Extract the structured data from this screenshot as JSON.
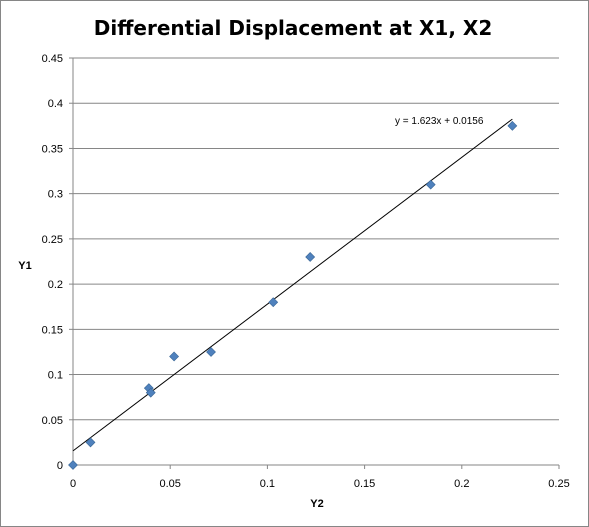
{
  "chart_data": {
    "type": "scatter",
    "title": "Differential Displacement at X1, X2",
    "xlabel": "Y2",
    "ylabel": "Y1",
    "xlim": [
      0,
      0.25
    ],
    "ylim": [
      0,
      0.45
    ],
    "x_ticks": [
      0,
      0.05,
      0.1,
      0.15,
      0.2,
      0.25
    ],
    "y_ticks": [
      0,
      0.05,
      0.1,
      0.15,
      0.2,
      0.25,
      0.3,
      0.35,
      0.4,
      0.45
    ],
    "x_tick_labels": [
      "0",
      "0.05",
      "0.1",
      "0.15",
      "0.2",
      "0.25"
    ],
    "y_tick_labels": [
      "0",
      "0.05",
      "0.1",
      "0.15",
      "0.2",
      "0.25",
      "0.3",
      "0.35",
      "0.4",
      "0.45"
    ],
    "grid": "horizontal",
    "legend": "none",
    "series": [
      {
        "marker": "diamond",
        "color": "#4F81BD",
        "points": [
          {
            "x": 0.0,
            "y": 0.0
          },
          {
            "x": 0.009,
            "y": 0.025
          },
          {
            "x": 0.039,
            "y": 0.085
          },
          {
            "x": 0.04,
            "y": 0.08
          },
          {
            "x": 0.052,
            "y": 0.12
          },
          {
            "x": 0.071,
            "y": 0.125
          },
          {
            "x": 0.103,
            "y": 0.18
          },
          {
            "x": 0.122,
            "y": 0.23
          },
          {
            "x": 0.184,
            "y": 0.31
          },
          {
            "x": 0.226,
            "y": 0.375
          }
        ]
      }
    ],
    "trendline": {
      "type": "linear",
      "slope": 1.623,
      "intercept": 0.0156,
      "x_range": [
        0,
        0.226
      ],
      "color": "#000000",
      "equation_label": "y = 1.623x + 0.0156"
    }
  }
}
